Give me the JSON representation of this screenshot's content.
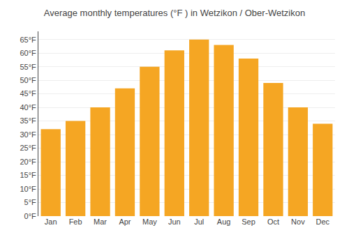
{
  "chart_data": {
    "type": "bar",
    "title": "Average monthly temperatures (°F ) in Wetzikon / Ober-Wetzikon",
    "categories": [
      "Jan",
      "Feb",
      "Mar",
      "Apr",
      "May",
      "Jun",
      "Jul",
      "Aug",
      "Sep",
      "Oct",
      "Nov",
      "Dec"
    ],
    "values": [
      32,
      35,
      40,
      47,
      55,
      61,
      65,
      63,
      58,
      49,
      40,
      34
    ],
    "color": "#F5A623",
    "ylim": [
      0,
      68
    ],
    "yticks": [
      {
        "value": 0,
        "label": "0°F"
      },
      {
        "value": 5,
        "label": "5°F"
      },
      {
        "value": 10,
        "label": "10°F"
      },
      {
        "value": 15,
        "label": "15°F"
      },
      {
        "value": 20,
        "label": "20°F"
      },
      {
        "value": 25,
        "label": "25°F"
      },
      {
        "value": 30,
        "label": "30°F"
      },
      {
        "value": 35,
        "label": "35°F"
      },
      {
        "value": 40,
        "label": "40°F"
      },
      {
        "value": 45,
        "label": "45°F"
      },
      {
        "value": 50,
        "label": "50°F"
      },
      {
        "value": 55,
        "label": "55°F"
      },
      {
        "value": 60,
        "label": "60°F"
      },
      {
        "value": 65,
        "label": "65°F"
      }
    ],
    "grid": true
  }
}
